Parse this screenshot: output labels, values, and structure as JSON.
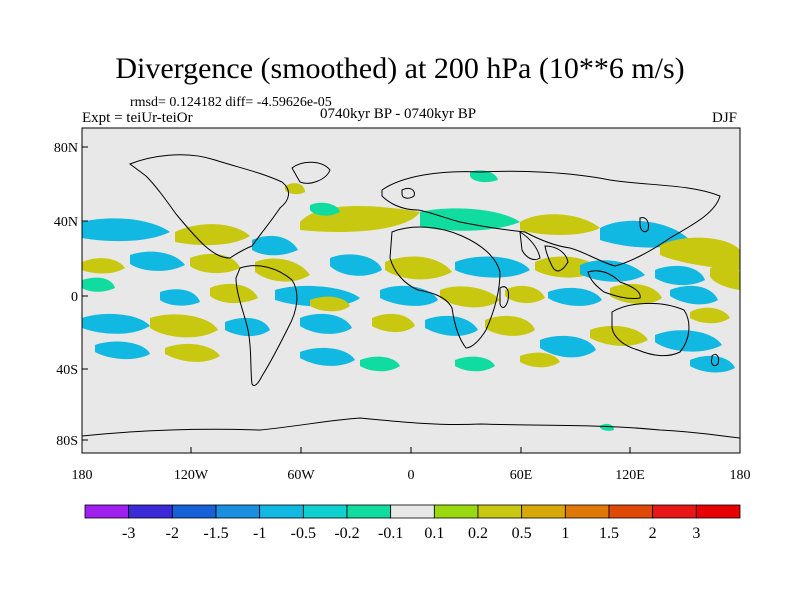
{
  "title": "Divergence (smoothed) at 200 hPa (10**6 m/s)",
  "stats": "rmsd= 0.124182 diff= -4.59626e-05",
  "experiment": "Expt = teiUr-teiOr",
  "period": "0740kyr BP - 0740kyr BP",
  "season": "DJF",
  "lat_labels": [
    "80N",
    "40N",
    "0",
    "40S",
    "80S"
  ],
  "lon_labels": [
    "180",
    "120W",
    "60W",
    "0",
    "60E",
    "120E",
    "180"
  ],
  "colorbar": {
    "labels": [
      "-3",
      "-2",
      "-1.5",
      "-1",
      "-0.5",
      "-0.2",
      "-0.1",
      "0.1",
      "0.2",
      "0.5",
      "1",
      "1.5",
      "2",
      "3"
    ],
    "colors": [
      "#a020f0",
      "#3a2ad8",
      "#1660d8",
      "#1a8fe0",
      "#10b8e2",
      "#10d0d0",
      "#10dca0",
      "#e8e8e8",
      "#9ad810",
      "#c8c810",
      "#d8a808",
      "#e07808",
      "#e04808",
      "#e81818",
      "#e80000"
    ]
  },
  "colors": {
    "ocean_bg": "#e8e8e8",
    "coast": "#000000",
    "neg_low": "#10dca0",
    "neg_mid": "#10b8e2",
    "neg_high": "#1a8fe0",
    "pos_low": "#9ad810",
    "pos_mid": "#c8c810",
    "pos_high": "#d8a808"
  }
}
